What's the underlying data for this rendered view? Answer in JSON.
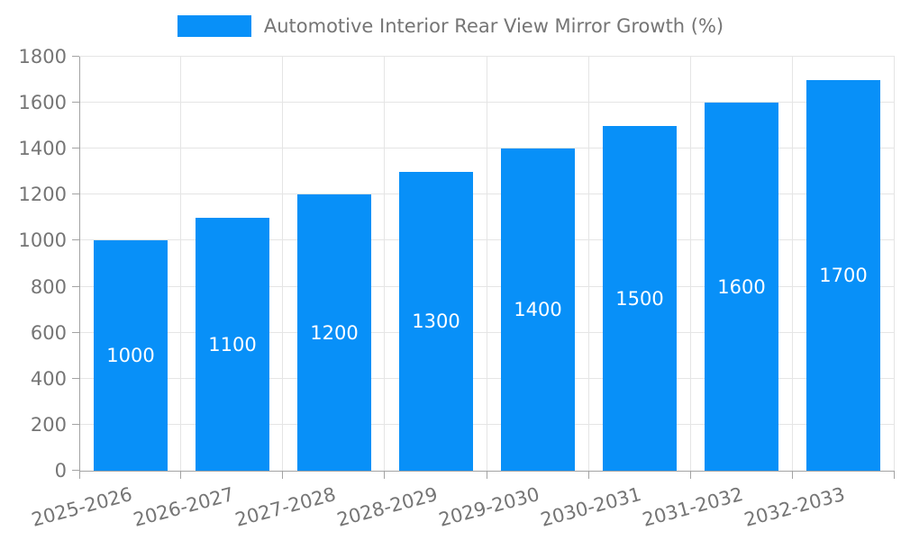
{
  "legend": {
    "label": "Automotive Interior Rear View Mirror Growth (%)"
  },
  "chart_data": {
    "type": "bar",
    "title": "Automotive Interior Rear View Mirror Growth (%)",
    "categories": [
      "2025-2026",
      "2026-2027",
      "2027-2028",
      "2028-2029",
      "2029-2030",
      "2030-2031",
      "2031-2032",
      "2032-2033"
    ],
    "values": [
      1000,
      1100,
      1200,
      1300,
      1400,
      1500,
      1600,
      1700
    ],
    "xlabel": "",
    "ylabel": "",
    "ylim": [
      0,
      1800
    ],
    "yticks": [
      0,
      200,
      400,
      600,
      800,
      1000,
      1200,
      1400,
      1600,
      1800
    ],
    "grid": true,
    "legend_position": "top-center",
    "value_labels": "inside-center",
    "xlabel_rotation_deg": -15,
    "colors": {
      "bar": "#0890F8",
      "value_label": "#FFFFFF",
      "axis_text": "#757575",
      "grid_line": "#E5E5E5",
      "axis_line": "#A3A3A3",
      "background": "#FFFFFF"
    }
  }
}
